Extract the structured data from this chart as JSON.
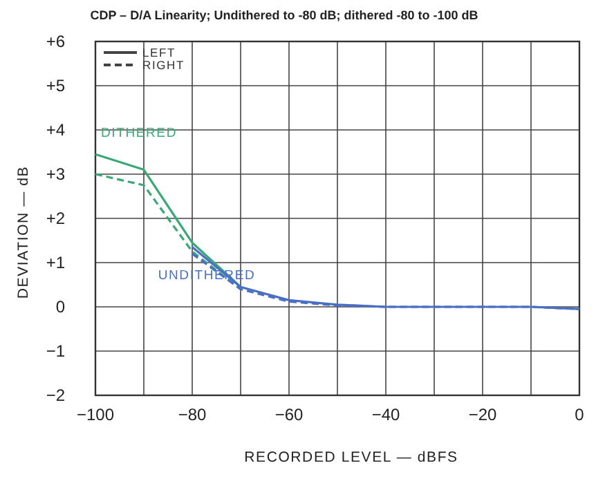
{
  "chart_data": {
    "type": "line",
    "title": "CDP – D/A Linearity; Undithered to -80 dB; dithered -80 to -100 dB",
    "xlabel": "RECORDED LEVEL — dBFS",
    "ylabel": "DEVIATION — dB",
    "xlim": [
      -100,
      0
    ],
    "xticks": [
      -100,
      {
        "value": -90,
        "label": null
      },
      -80,
      {
        "value": -70,
        "label": null
      },
      -60,
      {
        "value": -50,
        "label": null
      },
      -40,
      {
        "value": -30,
        "label": null
      },
      -20,
      {
        "value": -10,
        "label": null
      },
      0
    ],
    "ylim": [
      -2,
      6
    ],
    "yticks": [
      {
        "value": -2,
        "label": "−2"
      },
      {
        "value": -1,
        "label": "−1"
      },
      0,
      {
        "value": 1,
        "label": "+1"
      },
      {
        "value": 2,
        "label": "+2"
      },
      {
        "value": 3,
        "label": "+3"
      },
      {
        "value": 4,
        "label": "+4"
      },
      {
        "value": 5,
        "label": "+5"
      },
      {
        "value": 6,
        "label": "+6"
      }
    ],
    "grid": true,
    "marker": "none",
    "series": [
      {
        "name": "DITHERED",
        "color": "#3aa877",
        "line_style": "solid",
        "x": [
          -100,
          -90,
          -80,
          -70
        ],
        "values": [
          3.45,
          3.1,
          1.45,
          0.45
        ]
      },
      {
        "color": "#3aa877",
        "line_style": "dashed",
        "x": [
          -100,
          -90,
          -80,
          -70
        ],
        "values": [
          3.0,
          2.75,
          1.25,
          0.4
        ]
      },
      {
        "name": "UNDITHERED",
        "color": "#4a6fc4",
        "line_style": "solid",
        "x": [
          -80,
          -70,
          -60,
          -50,
          -40,
          -30,
          -20,
          -10,
          0
        ],
        "values": [
          1.35,
          0.45,
          0.15,
          0.05,
          0,
          0,
          0,
          0,
          -0.05
        ]
      },
      {
        "color": "#4a6fc4",
        "line_style": "dashed",
        "x": [
          -80,
          -70,
          -60,
          -50,
          -40,
          -30,
          -20,
          -10,
          0
        ],
        "values": [
          1.2,
          0.4,
          0.12,
          0.03,
          0,
          0,
          0,
          0,
          -0.05
        ]
      }
    ],
    "annotations": [
      "LEFT",
      "RIGHT"
    ]
  }
}
